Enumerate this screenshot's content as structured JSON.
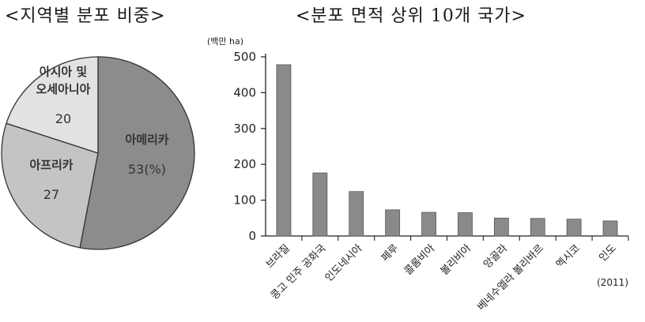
{
  "titles": {
    "pie": "<지역별 분포 비중>",
    "bar": "<분포 면적 상위 10개 국가>"
  },
  "chart_data": [
    {
      "type": "pie",
      "title": "<지역별 분포 비중>",
      "unit": "(%)",
      "slices": [
        {
          "label": "아메리카",
          "value": 53,
          "value_text": "53(%)",
          "color": "#8c8c8c"
        },
        {
          "label": "아프리카",
          "value": 27,
          "value_text": "27",
          "color": "#c4c4c4"
        },
        {
          "label_lines": [
            "아시아 및",
            "오세아니아"
          ],
          "value": 20,
          "value_text": "20",
          "color": "#e2e2e2"
        }
      ]
    },
    {
      "type": "bar",
      "title": "<분포 면적 상위 10개 국가>",
      "ylabel": "(백만 ha)",
      "ylim": [
        0,
        500
      ],
      "yticks": [
        "0",
        "100",
        "200",
        "300",
        "400",
        "500"
      ],
      "categories": [
        "브라질",
        "콩고 민주 공화국",
        "인도네시아",
        "페루",
        "콜롬비아",
        "볼리비아",
        "앙골라",
        "베네수엘라 볼리바르",
        "멕시코",
        "인도"
      ],
      "values": [
        478,
        176,
        124,
        73,
        66,
        65,
        50,
        49,
        47,
        42
      ],
      "bar_color": "#8a8a8a",
      "year_note": "(2011)"
    }
  ]
}
